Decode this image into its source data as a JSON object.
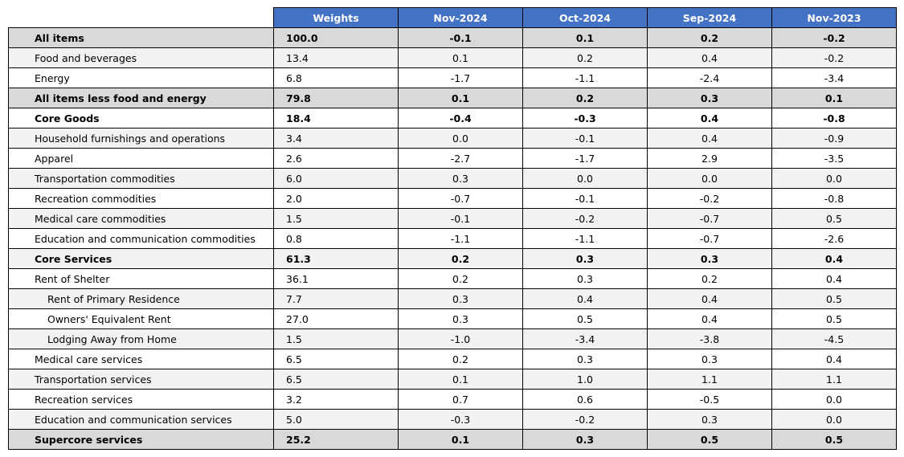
{
  "chart_data": {
    "type": "table",
    "columns": [
      "Weights",
      "Nov-2024",
      "Oct-2024",
      "Sep-2024",
      "Nov-2023"
    ],
    "rows": [
      {
        "label": "All items",
        "weight": "100.0",
        "values": [
          "-0.1",
          "0.1",
          "0.2",
          "-0.2"
        ],
        "bold": true,
        "indent": 0,
        "shade": "dark"
      },
      {
        "label": "Food and beverages",
        "weight": "13.4",
        "values": [
          "0.1",
          "0.2",
          "0.4",
          "-0.2"
        ],
        "bold": false,
        "indent": 0,
        "shade": "light"
      },
      {
        "label": "Energy",
        "weight": "6.8",
        "values": [
          "-1.7",
          "-1.1",
          "-2.4",
          "-3.4"
        ],
        "bold": false,
        "indent": 0,
        "shade": "white"
      },
      {
        "label": "All items less food and energy",
        "weight": "79.8",
        "values": [
          "0.1",
          "0.2",
          "0.3",
          "0.1"
        ],
        "bold": true,
        "indent": 0,
        "shade": "dark"
      },
      {
        "label": "Core Goods",
        "weight": "18.4",
        "values": [
          "-0.4",
          "-0.3",
          "0.4",
          "-0.8"
        ],
        "bold": true,
        "indent": 0,
        "shade": "white"
      },
      {
        "label": "Household furnishings and operations",
        "weight": "3.4",
        "values": [
          "0.0",
          "-0.1",
          "0.4",
          "-0.9"
        ],
        "bold": false,
        "indent": 0,
        "shade": "light"
      },
      {
        "label": "Apparel",
        "weight": "2.6",
        "values": [
          "-2.7",
          "-1.7",
          "2.9",
          "-3.5"
        ],
        "bold": false,
        "indent": 0,
        "shade": "white"
      },
      {
        "label": "Transportation commodities",
        "weight": "6.0",
        "values": [
          "0.3",
          "0.0",
          "0.0",
          "0.0"
        ],
        "bold": false,
        "indent": 0,
        "shade": "light"
      },
      {
        "label": "Recreation commodities",
        "weight": "2.0",
        "values": [
          "-0.7",
          "-0.1",
          "-0.2",
          "-0.8"
        ],
        "bold": false,
        "indent": 0,
        "shade": "white"
      },
      {
        "label": "Medical care commodities",
        "weight": "1.5",
        "values": [
          "-0.1",
          "-0.2",
          "-0.7",
          "0.5"
        ],
        "bold": false,
        "indent": 0,
        "shade": "light"
      },
      {
        "label": "Education and communication commodities",
        "weight": "0.8",
        "values": [
          "-1.1",
          "-1.1",
          "-0.7",
          "-2.6"
        ],
        "bold": false,
        "indent": 0,
        "shade": "white"
      },
      {
        "label": "Core Services",
        "weight": "61.3",
        "values": [
          "0.2",
          "0.3",
          "0.3",
          "0.4"
        ],
        "bold": true,
        "indent": 0,
        "shade": "light"
      },
      {
        "label": "Rent of Shelter",
        "weight": "36.1",
        "values": [
          "0.2",
          "0.3",
          "0.2",
          "0.4"
        ],
        "bold": false,
        "indent": 0,
        "shade": "white"
      },
      {
        "label": "Rent of Primary Residence",
        "weight": "7.7",
        "values": [
          "0.3",
          "0.4",
          "0.4",
          "0.5"
        ],
        "bold": false,
        "indent": 1,
        "shade": "light"
      },
      {
        "label": "Owners' Equivalent Rent",
        "weight": "27.0",
        "values": [
          "0.3",
          "0.5",
          "0.4",
          "0.5"
        ],
        "bold": false,
        "indent": 1,
        "shade": "white"
      },
      {
        "label": "Lodging Away from Home",
        "weight": "1.5",
        "values": [
          "-1.0",
          "-3.4",
          "-3.8",
          "-4.5"
        ],
        "bold": false,
        "indent": 1,
        "shade": "light"
      },
      {
        "label": "Medical care services",
        "weight": "6.5",
        "values": [
          "0.2",
          "0.3",
          "0.3",
          "0.4"
        ],
        "bold": false,
        "indent": 0,
        "shade": "white"
      },
      {
        "label": "Transportation services",
        "weight": "6.5",
        "values": [
          "0.1",
          "1.0",
          "1.1",
          "1.1"
        ],
        "bold": false,
        "indent": 0,
        "shade": "light"
      },
      {
        "label": "Recreation services",
        "weight": "3.2",
        "values": [
          "0.7",
          "0.6",
          "-0.5",
          "0.0"
        ],
        "bold": false,
        "indent": 0,
        "shade": "white"
      },
      {
        "label": "Education and communication services",
        "weight": "5.0",
        "values": [
          "-0.3",
          "-0.2",
          "0.3",
          "0.0"
        ],
        "bold": false,
        "indent": 0,
        "shade": "light"
      },
      {
        "label": "Supercore services",
        "weight": "25.2",
        "values": [
          "0.1",
          "0.3",
          "0.5",
          "0.5"
        ],
        "bold": true,
        "indent": 0,
        "shade": "dark"
      }
    ],
    "colors": {
      "header_bg": "#4472c4",
      "header_text": "#ffffff",
      "row_dark": "#d9d9d9",
      "row_light": "#f2f2f2",
      "row_white": "#ffffff",
      "border": "#000000"
    }
  }
}
